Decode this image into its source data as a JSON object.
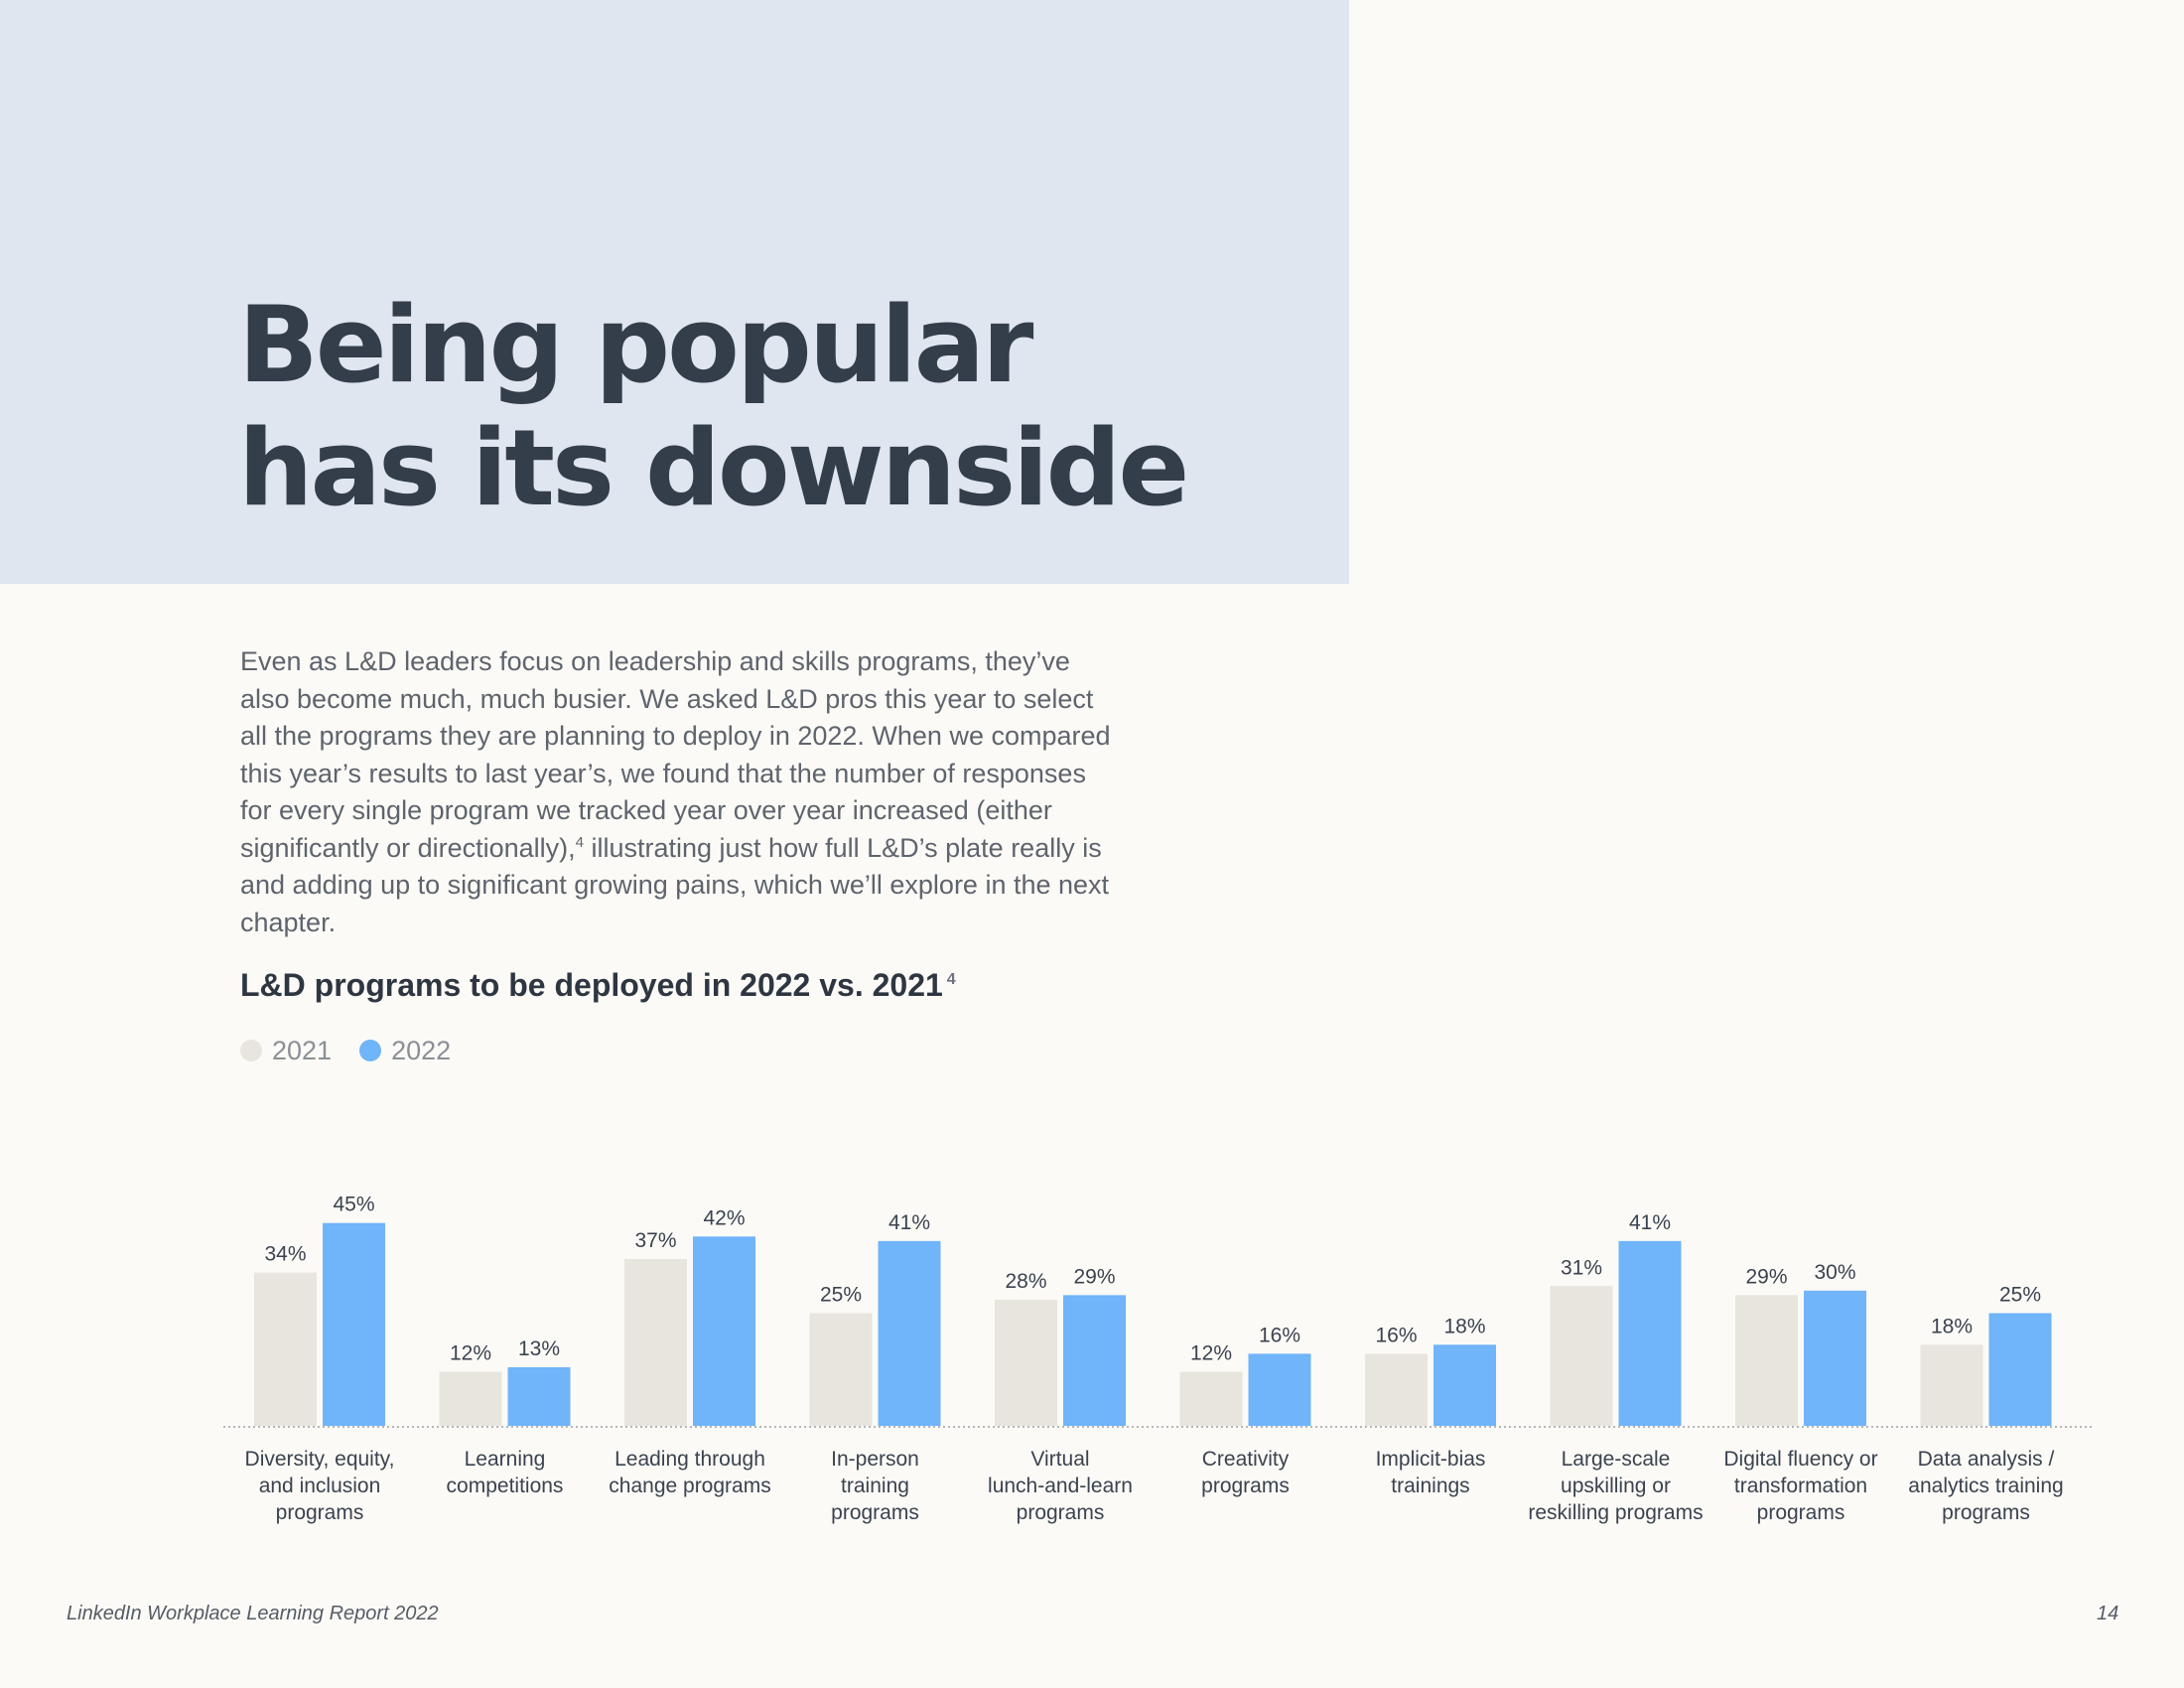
{
  "page": {
    "title_line1": "Being popular",
    "title_line2": "has its downside",
    "body": "Even as L&D leaders focus on leadership and skills programs, they’ve also become much, much busier. We asked L&D pros this year to select all the programs they are planning to deploy in 2022. When we compared this year’s results to last year’s, we found that the number of responses for every single program we tracked year over year increased (either significantly or directionally),",
    "body_footnote": "4",
    "body_end": " illustrating just how full L&D’s plate really is and adding up to significant growing pains, which we’ll explore in the next chapter.",
    "footer_left": "LinkedIn Workplace Learning Report 2022",
    "page_number": "14"
  },
  "colors": {
    "hero_bg": "#dfe6f0",
    "series_2021": "#e8e5de",
    "series_2022": "#70b4f9"
  },
  "chart_data": {
    "type": "bar",
    "title": "L&D programs to be deployed in 2022 vs. 2021",
    "title_footnote": "4",
    "ylim": [
      0,
      50
    ],
    "grid": false,
    "legend_position": "top-left",
    "categories": [
      [
        "Diversity, equity,",
        "and inclusion",
        "programs"
      ],
      [
        "Learning",
        "competitions"
      ],
      [
        "Leading through",
        "change programs"
      ],
      [
        "In-person",
        "training",
        "programs"
      ],
      [
        "Virtual",
        "lunch-and-learn",
        "programs"
      ],
      [
        "Creativity",
        "programs"
      ],
      [
        "Implicit-bias",
        "trainings"
      ],
      [
        "Large-scale",
        "upskilling or",
        "reskilling programs"
      ],
      [
        "Digital fluency or",
        "transformation",
        "programs"
      ],
      [
        "Data analysis /",
        "analytics training",
        "programs"
      ]
    ],
    "series": [
      {
        "name": "2021",
        "values": [
          34,
          12,
          37,
          25,
          28,
          12,
          16,
          31,
          29,
          18
        ]
      },
      {
        "name": "2022",
        "values": [
          45,
          13,
          42,
          41,
          29,
          16,
          18,
          41,
          30,
          25
        ]
      }
    ],
    "value_suffix": "%"
  }
}
